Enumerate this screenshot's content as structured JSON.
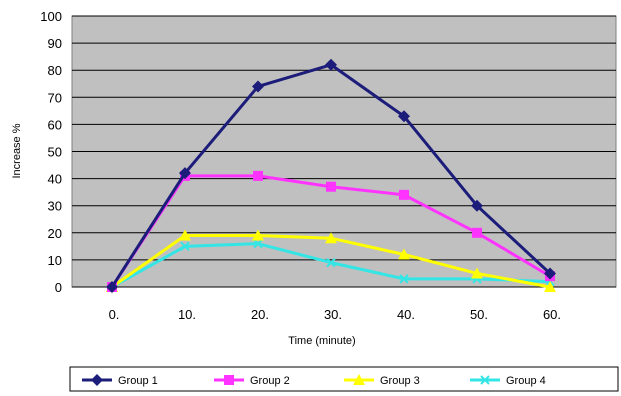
{
  "chart_data": {
    "type": "line",
    "title": "",
    "xlabel": "Time (minute)",
    "ylabel": "Increase %",
    "categories": [
      "0.",
      "10.",
      "20.",
      "30.",
      "40.",
      "50.",
      "60."
    ],
    "ylim": [
      0,
      100
    ],
    "yticks": [
      0,
      10,
      20,
      30,
      40,
      50,
      60,
      70,
      80,
      90,
      100
    ],
    "grid": "horizontal",
    "legend_position": "bottom",
    "plot_background": "#c0c0c0",
    "series": [
      {
        "name": "Group 1",
        "color": "#1c1c7a",
        "marker": "diamond",
        "values": [
          0,
          42,
          74,
          82,
          63,
          30,
          5
        ]
      },
      {
        "name": "Group 2",
        "color": "#ff33ff",
        "marker": "square",
        "values": [
          0,
          41,
          41,
          37,
          34,
          20,
          4
        ]
      },
      {
        "name": "Group 3",
        "color": "#ffff00",
        "marker": "triangle",
        "values": [
          0,
          19,
          19,
          18,
          12,
          5,
          0
        ]
      },
      {
        "name": "Group 4",
        "color": "#33e5e5",
        "marker": "x",
        "values": [
          0,
          15,
          16,
          9,
          3,
          3,
          2
        ]
      }
    ]
  }
}
